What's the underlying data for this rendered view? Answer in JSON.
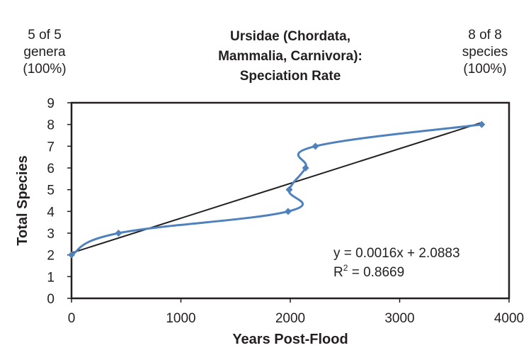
{
  "notes": {
    "left": [
      "5 of 5",
      "genera",
      "(100%)"
    ],
    "right": [
      "8 of 8",
      "species",
      "(100%)"
    ]
  },
  "chart_data": {
    "type": "scatter",
    "title": [
      "Ursidae (Chordata,",
      "Mammalia, Carnivora):",
      "Speciation Rate"
    ],
    "xlabel": "Years Post-Flood",
    "ylabel": "Total Species",
    "xlim": [
      0,
      4000
    ],
    "ylim": [
      0,
      9
    ],
    "xticks": [
      "0",
      "1000",
      "2000",
      "3000",
      "4000"
    ],
    "yticks": [
      "0",
      "1",
      "2",
      "3",
      "4",
      "5",
      "6",
      "7",
      "8",
      "9"
    ],
    "grid": false,
    "legend": "none",
    "series": [
      {
        "color": "#4f81bd",
        "line": "smooth",
        "marker": "diamond",
        "x": [
          0,
          430,
          1980,
          1990,
          2140,
          2230,
          3750
        ],
        "y": [
          2,
          3,
          4,
          5,
          6,
          7,
          8
        ]
      }
    ],
    "trendline": {
      "type": "linear",
      "color": "#231f20",
      "slope": 0.0016,
      "intercept": 2.0883,
      "x_range": [
        0,
        3750
      ],
      "equation": "y = 0.0016x + 2.0883",
      "r2_prefix": "R",
      "r2_sup": "2",
      "r2_value": " = 0.8669"
    }
  }
}
